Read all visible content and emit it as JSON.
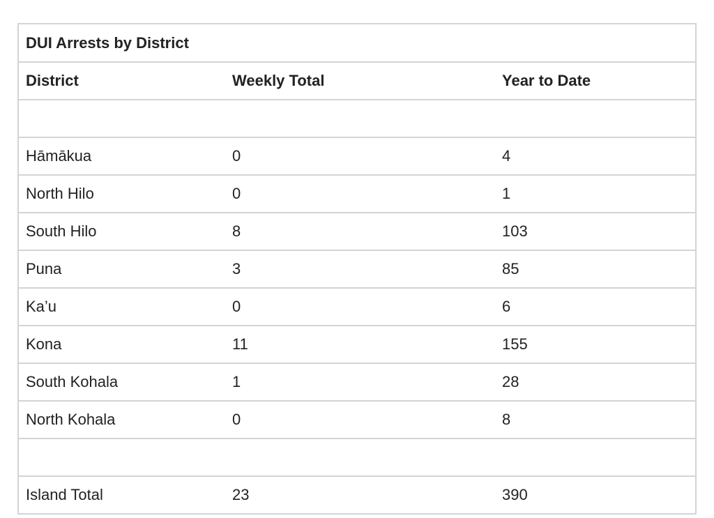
{
  "table": {
    "title": "DUI Arrests by District",
    "headers": [
      "District",
      "Weekly Total",
      "Year to Date"
    ],
    "rows": [
      [
        "",
        "",
        ""
      ],
      [
        "Hāmākua",
        "0",
        "4"
      ],
      [
        "North Hilo",
        "0",
        "1"
      ],
      [
        "South Hilo",
        "8",
        "103"
      ],
      [
        "Puna",
        "3",
        "85"
      ],
      [
        "Ka’u",
        "0",
        "6"
      ],
      [
        "Kona",
        "11",
        "155"
      ],
      [
        "South Kohala",
        "1",
        "28"
      ],
      [
        "North Kohala",
        "0",
        "8"
      ],
      [
        "",
        "",
        ""
      ],
      [
        "Island Total",
        "23",
        "390"
      ]
    ]
  }
}
